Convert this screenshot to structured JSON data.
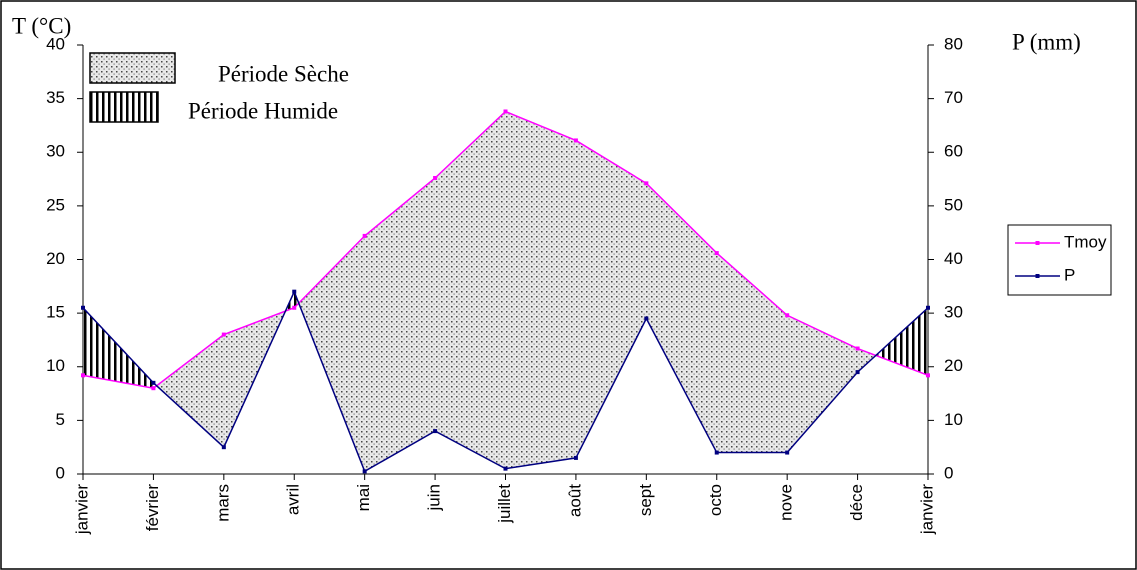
{
  "chart_data": {
    "type": "line",
    "ylabel": "T (°C)",
    "y2label": "P (mm)",
    "annotations": [
      "Période Sèche",
      "Période Humide"
    ],
    "categories": [
      "janvier",
      "février",
      "mars",
      "avril",
      "mai",
      "juin",
      "juillet",
      "août",
      "sept",
      "octo",
      "nove",
      "déce",
      "janvier"
    ],
    "series": [
      {
        "name": "Tmoy",
        "color": "#ff00ff",
        "values": [
          9.2,
          8.0,
          13.0,
          15.5,
          22.2,
          27.6,
          33.8,
          31.1,
          27.1,
          20.6,
          14.8,
          11.7,
          9.2
        ]
      },
      {
        "name": "P",
        "color": "#000080",
        "axis": "y2",
        "values": [
          31,
          17,
          5,
          34,
          0.5,
          8,
          1,
          3,
          29,
          4,
          4,
          19,
          31
        ]
      }
    ],
    "ylim": [
      0,
      40
    ],
    "yticks": [
      0,
      5,
      10,
      15,
      20,
      25,
      30,
      35,
      40
    ],
    "y2lim": [
      0,
      80
    ],
    "y2ticks": [
      0,
      10,
      20,
      30,
      40,
      50,
      60,
      70,
      80
    ]
  }
}
